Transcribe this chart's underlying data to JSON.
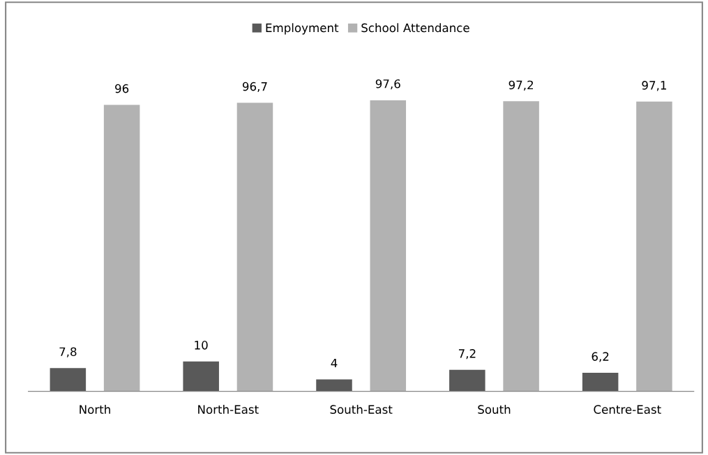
{
  "chart_data": {
    "type": "bar",
    "categories": [
      "North",
      "North-East",
      "South-East",
      "South",
      "Centre-East"
    ],
    "series": [
      {
        "name": "Employment",
        "color": "#595959",
        "values": [
          7.8,
          10,
          4,
          7.2,
          6.2
        ],
        "value_labels": [
          "7,8",
          "10",
          "4",
          "7,2",
          "6,2"
        ]
      },
      {
        "name": "School Attendance",
        "color": "#b2b2b2",
        "values": [
          96,
          96.7,
          97.6,
          97.2,
          97.1
        ],
        "value_labels": [
          "96",
          "96,7",
          "97,6",
          "97,2",
          "97,1"
        ]
      }
    ],
    "legend": "top"
  }
}
